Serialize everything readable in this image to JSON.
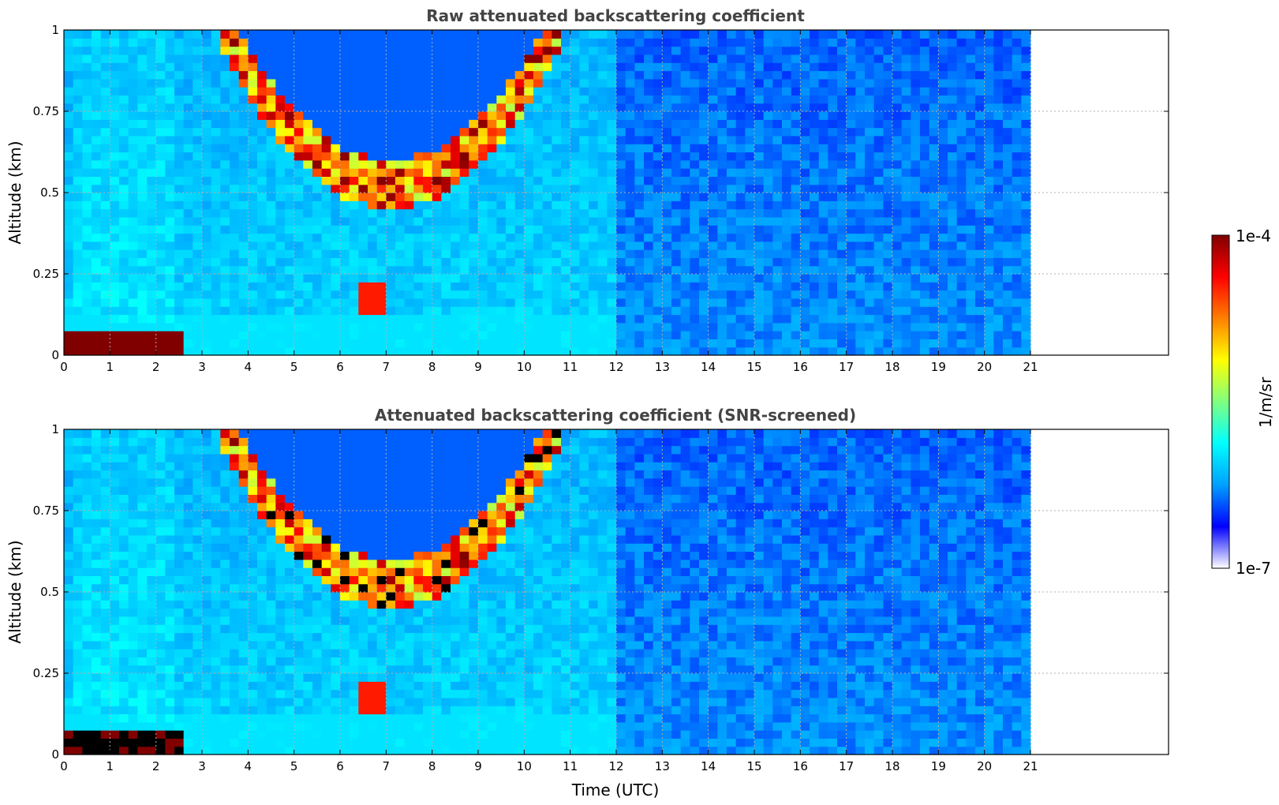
{
  "colorbar": {
    "label": "1/m/sr",
    "min_label": "1e-7",
    "max_label": "1e-4",
    "colormap": [
      "#ffffff",
      "#0000ff",
      "#00a0ff",
      "#00ffff",
      "#80ff80",
      "#ffff00",
      "#ff8000",
      "#ff0000",
      "#800000"
    ]
  },
  "xlabel": "Time (UTC)",
  "chart_data": [
    {
      "type": "heatmap",
      "title": "Raw attenuated backscattering coefficient",
      "ylabel": "Altitude (km)",
      "xlabel": "",
      "xlim": [
        0,
        24
      ],
      "ylim": [
        0,
        1
      ],
      "grid": true,
      "x_ticks": [
        "0",
        "1",
        "2",
        "3",
        "4",
        "5",
        "6",
        "7",
        "8",
        "9",
        "10",
        "11",
        "12",
        "13",
        "14",
        "15",
        "16",
        "17",
        "18",
        "19",
        "20",
        "21"
      ],
      "y_ticks": [
        "0",
        "0.25",
        "0.5",
        "0.75",
        "1"
      ],
      "data_extent_x": [
        0,
        21
      ],
      "features": {
        "surface_layer_max_altitude_km": 0.08,
        "surface_layer_time_range": [
          0,
          2.5
        ],
        "cloud_band_time_range": [
          3.4,
          10.8
        ],
        "cloud_band_altitude_range_km": [
          0.45,
          1.0
        ],
        "low_cloud_time_range": [
          6.4,
          7.0
        ],
        "low_cloud_altitude_range_km": [
          0.12,
          0.22
        ]
      }
    },
    {
      "type": "heatmap",
      "title": "Attenuated backscattering coefficient (SNR-screened)",
      "ylabel": "Altitude (km)",
      "xlabel": "Time (UTC)",
      "xlim": [
        0,
        24
      ],
      "ylim": [
        0,
        1
      ],
      "grid": true,
      "x_ticks": [
        "0",
        "1",
        "2",
        "3",
        "4",
        "5",
        "6",
        "7",
        "8",
        "9",
        "10",
        "11",
        "12",
        "13",
        "14",
        "15",
        "16",
        "17",
        "18",
        "19",
        "20",
        "21"
      ],
      "y_ticks": [
        "0",
        "0.25",
        "0.5",
        "0.75",
        "1"
      ],
      "data_extent_x": [
        0,
        21
      ],
      "features": {
        "surface_layer_max_altitude_km": 0.08,
        "surface_layer_time_range": [
          0,
          2.5
        ],
        "cloud_band_time_range": [
          3.4,
          10.8
        ],
        "cloud_band_altitude_range_km": [
          0.45,
          1.0
        ],
        "low_cloud_time_range": [
          6.4,
          7.0
        ],
        "low_cloud_altitude_range_km": [
          0.12,
          0.22
        ]
      }
    }
  ]
}
